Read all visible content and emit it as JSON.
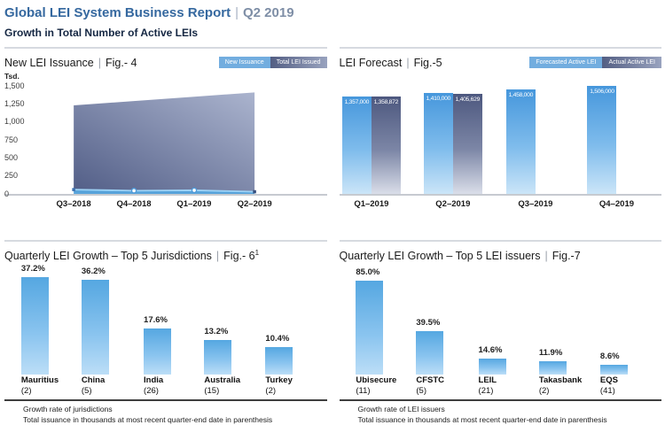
{
  "divider": "|",
  "header": {
    "title": "Global LEI System Business Report",
    "period": "Q2 2019",
    "subtitle": "Growth in Total Number of Active LEIs"
  },
  "colors": {
    "title_blue": "#35689F",
    "period_gray": "#7E8EA6",
    "subtitle_navy": "#152743",
    "forecast_bar_blue": "#4697DC",
    "actual_bar_slate": "#4D587F",
    "growth_bar_blue": "#55A7E1",
    "total_area_slate": "#525E87",
    "new_issuance_blue": "#57A3DA",
    "legend_light": "#72ADDF",
    "legend_dark": "#535E83"
  },
  "chart_data": [
    {
      "id": "new-lei-issuance",
      "type": "area",
      "title": "New LEI Issuance",
      "fig": "Fig.- 4",
      "legend": [
        "New Issuance",
        "Total LEI Issued"
      ],
      "legend_position": "top-right",
      "y_unit": "Tsd.",
      "y_ticks": [
        "1,500",
        "1,250",
        "1,000",
        "750",
        "500",
        "250",
        "0"
      ],
      "ylim": [
        0,
        1550
      ],
      "grid": false,
      "categories": [
        "Q3–2018",
        "Q4–2018",
        "Q1–2019",
        "Q2–2019"
      ],
      "series": [
        {
          "name": "New Issuance",
          "values": [
            60,
            45,
            50,
            30
          ]
        },
        {
          "name": "Total LEI Issued",
          "values": [
            1230,
            1290,
            1350,
            1410
          ]
        }
      ]
    },
    {
      "id": "lei-forecast",
      "type": "bar",
      "title": "LEI Forecast",
      "fig": "Fig.-5",
      "legend": [
        "Forecasted Active LEI",
        "Actual Active LEI"
      ],
      "legend_position": "top-right",
      "ylim": [
        0,
        1560000
      ],
      "categories": [
        "Q1–2019",
        "Q2–2019",
        "Q3–2019",
        "Q4–2019"
      ],
      "series": [
        {
          "name": "Forecasted Active LEI",
          "values": [
            1357000,
            1410000,
            1458000,
            1506000
          ],
          "labels": [
            "1,357,000",
            "1,410,000",
            "1,458,000",
            "1,506,000"
          ]
        },
        {
          "name": "Actual Active LEI",
          "values": [
            1358872,
            1405629,
            null,
            null
          ],
          "labels": [
            "1,358,872",
            "1,405,629",
            null,
            null
          ]
        }
      ]
    },
    {
      "id": "quarterly-growth-jurisdictions",
      "type": "bar",
      "title": "Quarterly LEI Growth – Top 5 Jurisdictions",
      "fig": "Fig.- 6",
      "fig_superscript": "1",
      "ylim": [
        0,
        40
      ],
      "categories": [
        "Mauritius",
        "China",
        "India",
        "Australia",
        "Turkey"
      ],
      "counts": [
        "(2)",
        "(5)",
        "(26)",
        "(15)",
        "(2)"
      ],
      "values": [
        37.2,
        36.2,
        17.6,
        13.2,
        10.4
      ],
      "value_labels": [
        "37.2%",
        "36.2%",
        "17.6%",
        "13.2%",
        "10.4%"
      ],
      "footnotes": [
        "Growth rate of jurisdictions",
        "Total issuance in thousands at most recent quarter-end date in parenthesis"
      ]
    },
    {
      "id": "quarterly-growth-issuers",
      "type": "bar",
      "title": "Quarterly LEI Growth – Top 5 LEI issuers",
      "fig": "Fig.-7",
      "ylim": [
        0,
        95
      ],
      "categories": [
        "Ubisecure",
        "CFSTC",
        "LEIL",
        "Takasbank",
        "EQS"
      ],
      "counts": [
        "(11)",
        "(5)",
        "(21)",
        "(2)",
        "(41)"
      ],
      "values": [
        85.0,
        39.5,
        14.6,
        11.9,
        8.6
      ],
      "value_labels": [
        "85.0%",
        "39.5%",
        "14.6%",
        "11.9%",
        "8.6%"
      ],
      "footnotes": [
        "Growth rate of LEI issuers",
        "Total issuance in thousands at most recent quarter-end date in parenthesis"
      ]
    }
  ]
}
